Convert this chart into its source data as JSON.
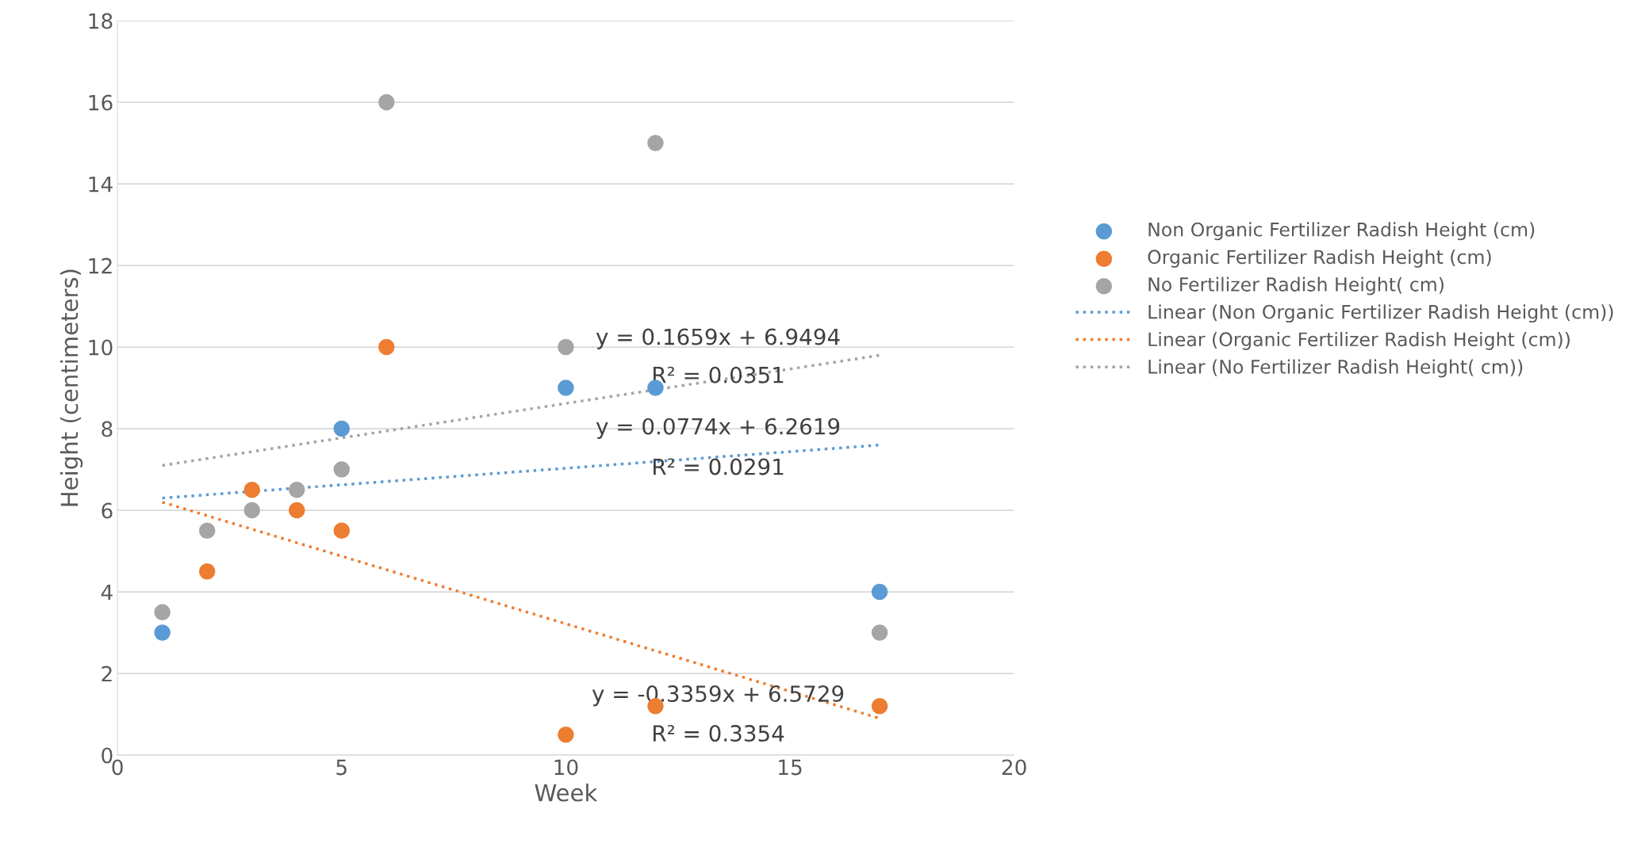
{
  "chart_data": {
    "type": "scatter",
    "xlabel": "Week",
    "ylabel": "Height (centimeters)",
    "xlim": [
      0,
      20
    ],
    "xticks": [
      0,
      5,
      10,
      15,
      20
    ],
    "ylim": [
      0,
      18
    ],
    "yticks": [
      0,
      2,
      4,
      6,
      8,
      10,
      12,
      14,
      16,
      18
    ],
    "grid": "y",
    "legend": "right",
    "marker": "circle",
    "series": [
      {
        "name": "Non Organic Fertilizer Radish Height (cm)",
        "color": "#5b9bd5",
        "x": [
          1,
          5,
          10,
          12,
          17
        ],
        "values": [
          3,
          8,
          9,
          9,
          4
        ]
      },
      {
        "name": "Organic Fertilizer Radish Height (cm)",
        "color": "#ed7d31",
        "x": [
          2,
          3,
          4,
          5,
          6,
          10,
          12,
          17
        ],
        "values": [
          4.5,
          6.5,
          6,
          5.5,
          10,
          0.5,
          1.2,
          1.2
        ]
      },
      {
        "name": "No Fertilizer Radish Height( cm)",
        "color": "#a5a5a5",
        "x": [
          1,
          2,
          3,
          4,
          5,
          6,
          10,
          12,
          17
        ],
        "values": [
          3.5,
          5.5,
          6,
          6.5,
          7,
          16,
          10,
          15,
          3
        ]
      },
      {
        "name": "Linear (Non Organic Fertilizer Radish Height (cm))",
        "type": "line",
        "line_style": "dotted",
        "marker": "none",
        "color": "#5b9bd5",
        "x": [
          1,
          17
        ],
        "values": [
          6.3,
          7.6
        ]
      },
      {
        "name": "Linear (Organic Fertilizer Radish Height (cm))",
        "type": "line",
        "line_style": "dotted",
        "marker": "none",
        "color": "#ed7d31",
        "x": [
          1,
          17
        ],
        "values": [
          6.2,
          0.9
        ]
      },
      {
        "name": "Linear (No Fertilizer Radish Height( cm))",
        "type": "line",
        "line_style": "dotted",
        "marker": "none",
        "color": "#a5a5a5",
        "x": [
          1,
          17
        ],
        "values": [
          7.1,
          9.8
        ]
      }
    ],
    "annotations": [
      "y = 0.1659x + 6.9494",
      "R² = 0.0351",
      "y = 0.0774x + 6.2619",
      "R² = 0.0291",
      "y = -0.3359x + 6.5729",
      "R² = 0.3354"
    ]
  }
}
